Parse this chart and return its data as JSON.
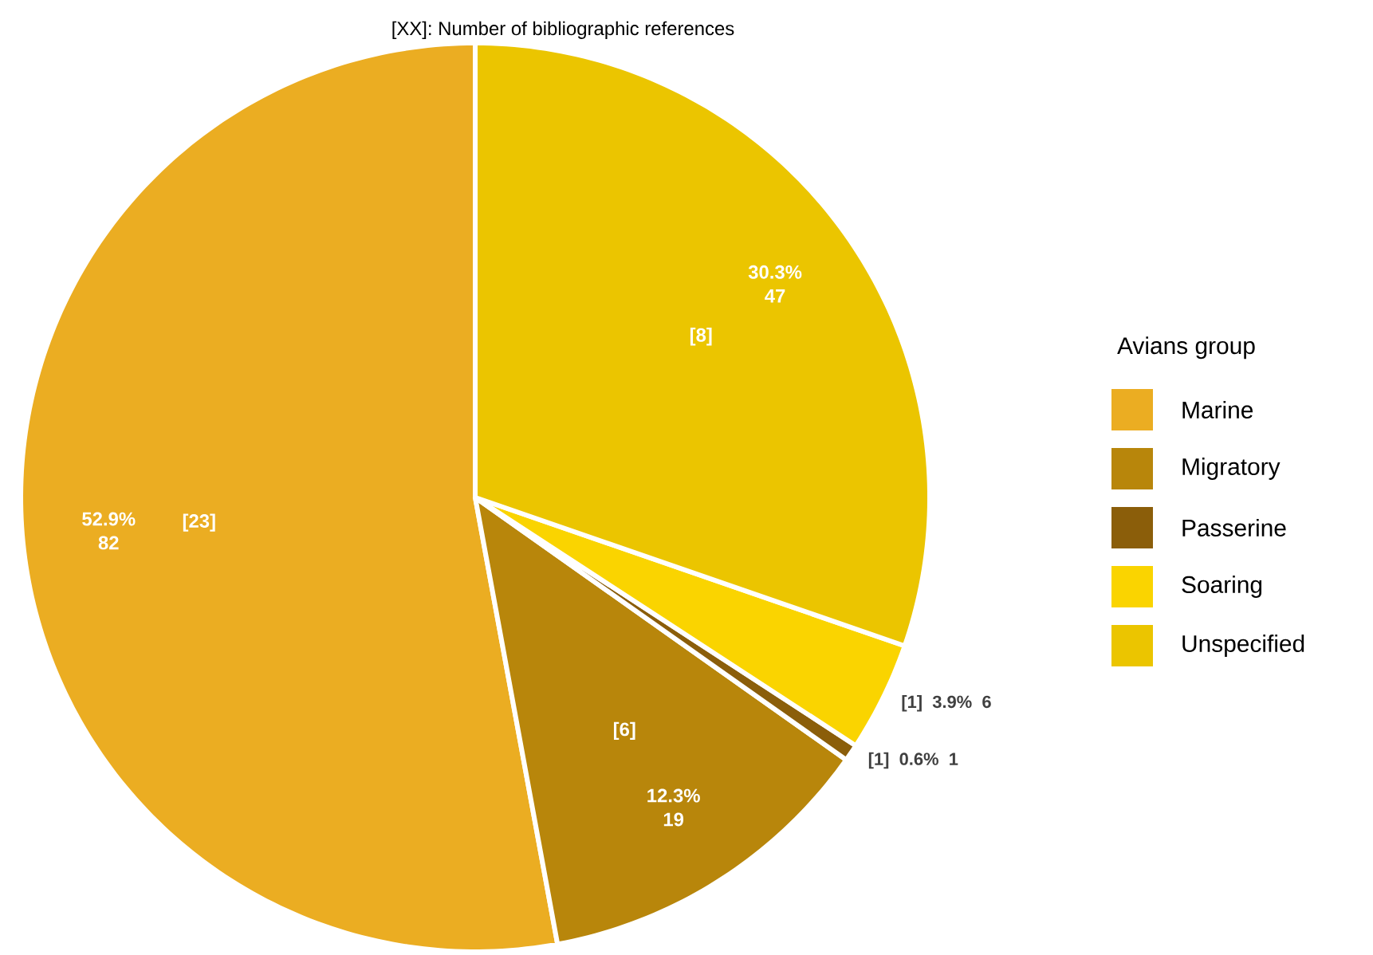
{
  "chart_data": {
    "type": "pie",
    "title": "[XX]: Number of bibliographic references",
    "legend_title": "Avians group",
    "categories": [
      "Marine",
      "Migratory",
      "Passerine",
      "Soaring",
      "Unspecified"
    ],
    "values": [
      52.9,
      12.3,
      0.6,
      3.9,
      30.3
    ],
    "colors": [
      "#ebad22",
      "#b8860b",
      "#8b5e0a",
      "#fad400",
      "#ebc500"
    ],
    "value_labels": [
      "52.9%",
      "12.3%",
      "0.6%",
      "3.9%",
      "30.3%"
    ],
    "annotations": [
      {
        "text": "[23]",
        "x": "Marine"
      },
      {
        "text": "[6]",
        "x": "Migratory"
      },
      {
        "text": "[1]",
        "x": "Passerine"
      },
      {
        "text": "[1]",
        "x": "Soaring"
      },
      {
        "text": "[8]",
        "x": "Unspecified"
      },
      {
        "text": "82",
        "x": "Marine"
      },
      {
        "text": "19",
        "x": "Migratory"
      },
      {
        "text": "1",
        "x": "Passerine"
      },
      {
        "text": "6",
        "x": "Soaring"
      },
      {
        "text": "47",
        "x": "Unspecified"
      }
    ],
    "legend": "right"
  }
}
